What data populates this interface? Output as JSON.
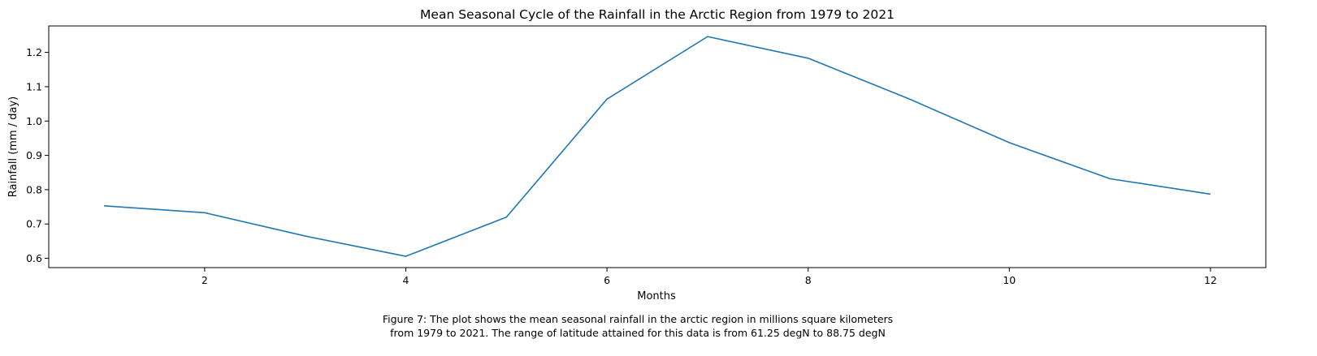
{
  "chart_data": {
    "type": "line",
    "title": "Mean Seasonal Cycle of the Rainfall in the Arctic Region from 1979 to 2021",
    "xlabel": "Months",
    "ylabel": "Rainfall (mm / day)",
    "xlim": [
      0.45,
      12.55
    ],
    "ylim": [
      0.573,
      1.277
    ],
    "xticks": [
      2,
      4,
      6,
      8,
      10,
      12
    ],
    "yticks": [
      0.6,
      0.7,
      0.8,
      0.9,
      1.0,
      1.1,
      1.2
    ],
    "ytick_labels": [
      "0.6",
      "0.7",
      "0.8",
      "0.9",
      "1.0",
      "1.1",
      "1.2"
    ],
    "grid": false,
    "line_color": "#1f77b4",
    "x": [
      1,
      2,
      3,
      4,
      5,
      6,
      7,
      8,
      9,
      10,
      11,
      12
    ],
    "series": [
      {
        "values": [
          0.753,
          0.733,
          0.665,
          0.606,
          0.72,
          1.064,
          1.246,
          1.183,
          1.065,
          0.937,
          0.832,
          0.787
        ]
      }
    ]
  },
  "caption": {
    "line1": "Figure 7: The plot shows the mean seasonal rainfall in the arctic region in millions square kilometers",
    "line2": "from 1979 to 2021. The range of latitude attained for this data is from 61.25 degN to 88.75 degN"
  }
}
